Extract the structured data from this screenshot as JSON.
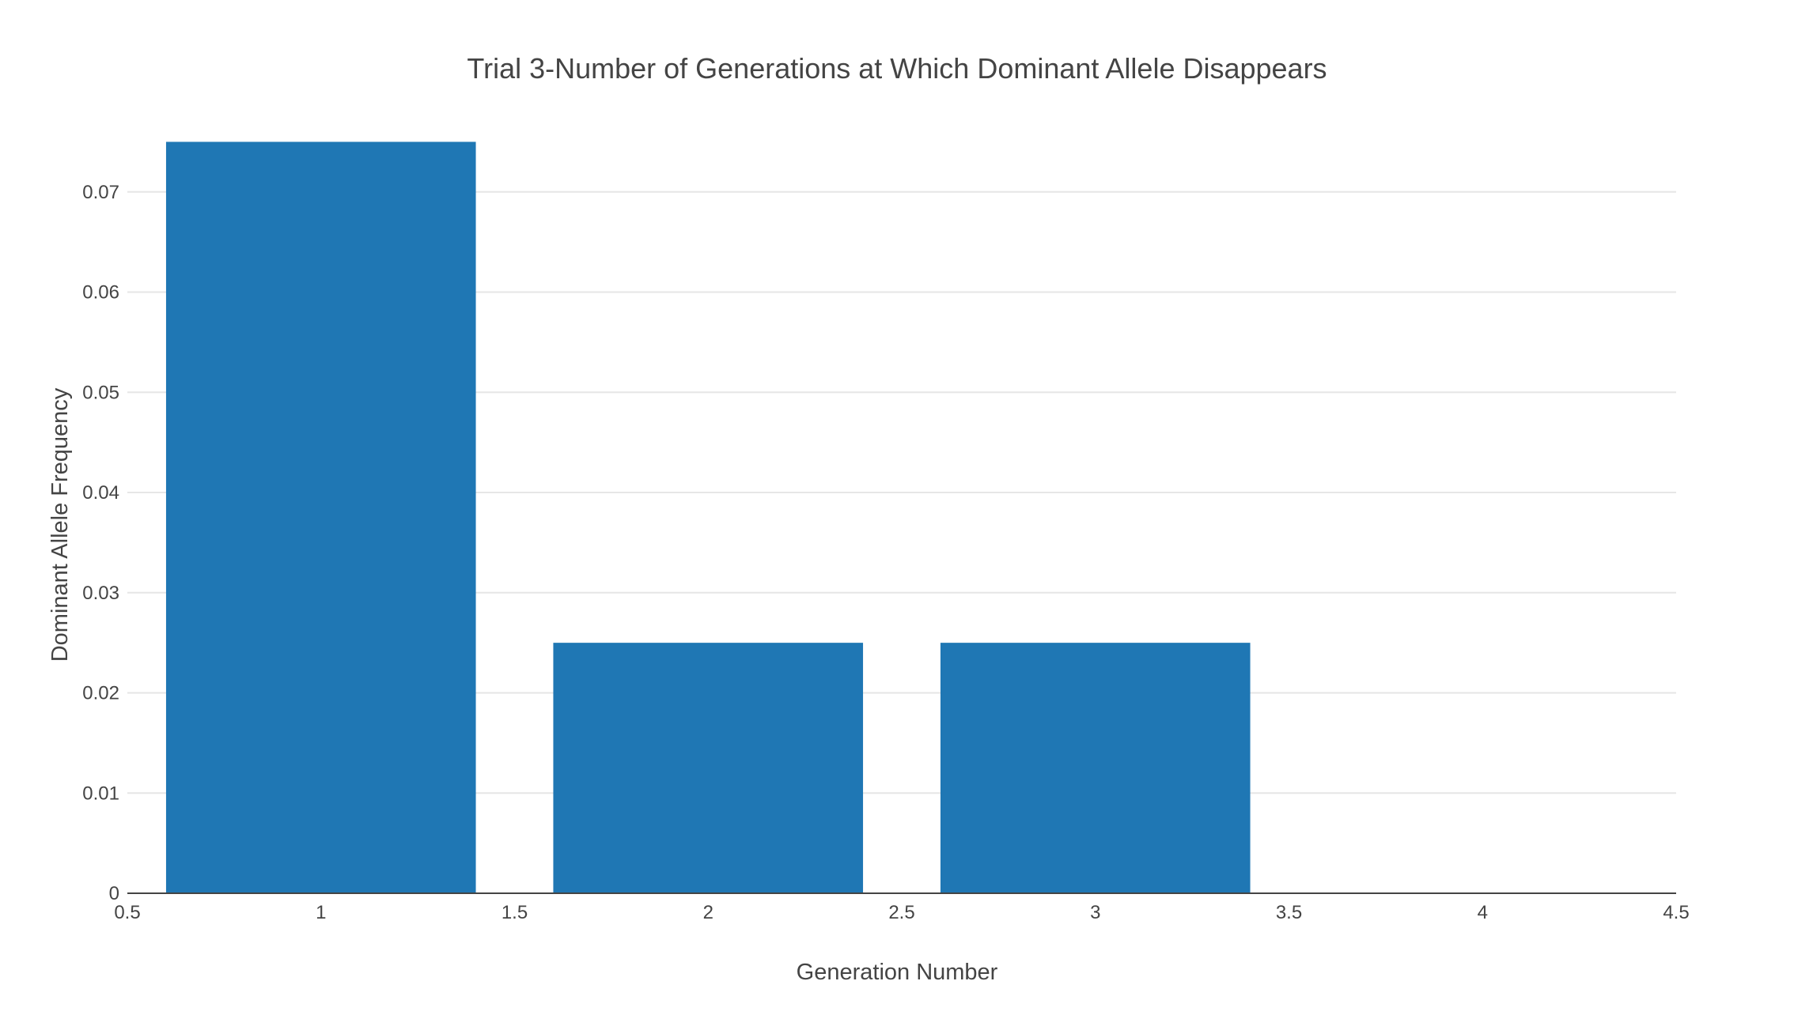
{
  "chart_data": {
    "type": "bar",
    "title": "Trial 3-Number of Generations at Which Dominant Allele Disappears",
    "xlabel": "Generation Number",
    "ylabel": "Dominant Allele Frequency",
    "x": [
      1,
      2,
      3,
      4
    ],
    "values": [
      0.075,
      0.025,
      0.025,
      0
    ],
    "bar_width": 0.8,
    "xlim": [
      0.5,
      4.5
    ],
    "ylim": [
      0,
      0.0789
    ],
    "x_ticks": [
      "0.5",
      "1",
      "1.5",
      "2",
      "2.5",
      "3",
      "3.5",
      "4",
      "4.5"
    ],
    "y_ticks": [
      "0",
      "0.01",
      "0.02",
      "0.03",
      "0.04",
      "0.05",
      "0.06",
      "0.07"
    ],
    "grid": true,
    "legend": false,
    "colors": {
      "bar": "#1f77b4",
      "grid": "#e6e6e6",
      "axis": "#444444",
      "text": "#444444"
    }
  }
}
